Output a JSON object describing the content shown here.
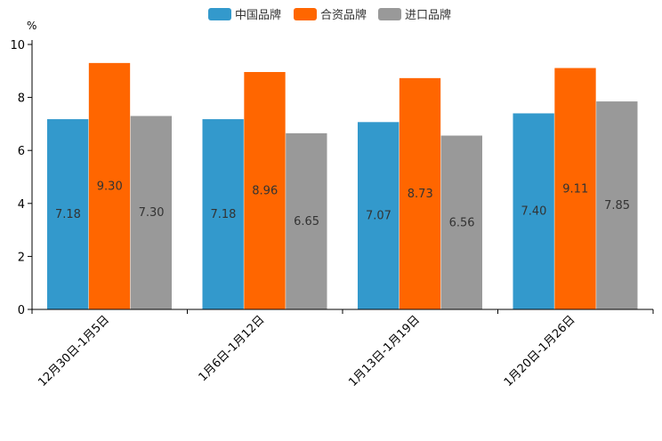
{
  "chart_data": {
    "type": "bar",
    "unit": "%",
    "categories": [
      "12月30日-1月5日",
      "1月6日-1月12日",
      "1月13日-1月19日",
      "1月20日-1月26日"
    ],
    "series": [
      {
        "name": "中国品牌",
        "color": "#3399cc",
        "values": [
          7.18,
          7.18,
          7.07,
          7.4
        ],
        "labels": [
          "7.18",
          "7.18",
          "7.07",
          "7.40"
        ]
      },
      {
        "name": "合资品牌",
        "color": "#ff6600",
        "values": [
          9.3,
          8.96,
          8.73,
          9.11
        ],
        "labels": [
          "9.30",
          "8.96",
          "8.73",
          "9.11"
        ]
      },
      {
        "name": "进口品牌",
        "color": "#999999",
        "values": [
          7.3,
          6.65,
          6.56,
          7.85
        ],
        "labels": [
          "7.30",
          "6.65",
          "6.56",
          "7.85"
        ]
      }
    ],
    "ylim": [
      0,
      10
    ],
    "yticks": [
      "0",
      "2",
      "4",
      "6",
      "8",
      "10"
    ],
    "legend_position": "top-center",
    "grid": false
  }
}
